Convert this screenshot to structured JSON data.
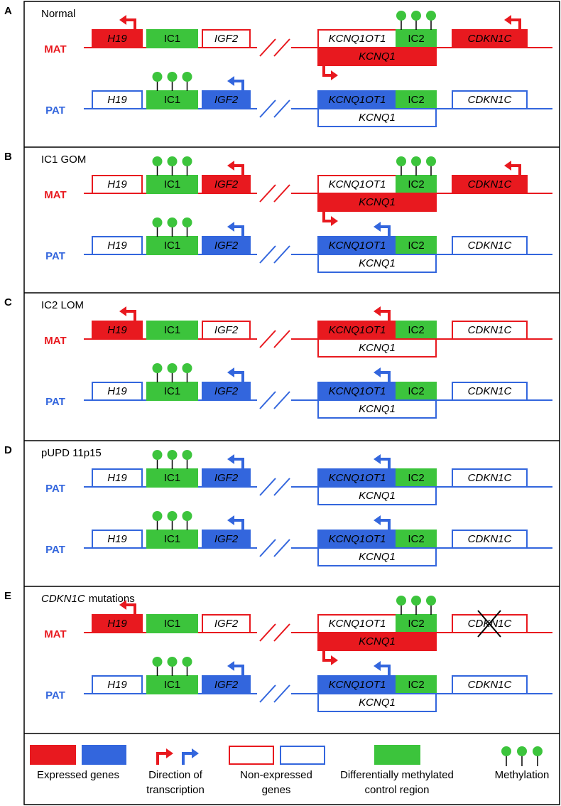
{
  "panels": [
    {
      "letter": "A",
      "title": "Normal",
      "strands": [
        {
          "label": "MAT",
          "genes": [
            "H19",
            "IC1",
            "IGF2",
            "KCNQ1OT1",
            "IC2",
            "KCNQ1",
            "CDKN1C"
          ]
        },
        {
          "label": "PAT",
          "genes": [
            "H19",
            "IC1",
            "IGF2",
            "KCNQ1OT1",
            "IC2",
            "KCNQ1",
            "CDKN1C"
          ]
        }
      ]
    },
    {
      "letter": "B",
      "title": "IC1 GOM",
      "strands": [
        {
          "label": "MAT",
          "genes": [
            "H19",
            "IC1",
            "IGF2",
            "KCNQ1OT1",
            "IC2",
            "KCNQ1",
            "CDKN1C"
          ]
        },
        {
          "label": "PAT",
          "genes": [
            "H19",
            "IC1",
            "IGF2",
            "KCNQ1OT1",
            "IC2",
            "KCNQ1",
            "CDKN1C"
          ]
        }
      ]
    },
    {
      "letter": "C",
      "title": "IC2 LOM",
      "strands": [
        {
          "label": "MAT",
          "genes": [
            "H19",
            "IC1",
            "IGF2",
            "KCNQ1OT1",
            "IC2",
            "KCNQ1",
            "CDKN1C"
          ]
        },
        {
          "label": "PAT",
          "genes": [
            "H19",
            "IC1",
            "IGF2",
            "KCNQ1OT1",
            "IC2",
            "KCNQ1",
            "CDKN1C"
          ]
        }
      ]
    },
    {
      "letter": "D",
      "title": "pUPD 11p15",
      "strands": [
        {
          "label": "PAT",
          "genes": [
            "H19",
            "IC1",
            "IGF2",
            "KCNQ1OT1",
            "IC2",
            "KCNQ1",
            "CDKN1C"
          ]
        },
        {
          "label": "PAT",
          "genes": [
            "H19",
            "IC1",
            "IGF2",
            "KCNQ1OT1",
            "IC2",
            "KCNQ1",
            "CDKN1C"
          ]
        }
      ]
    },
    {
      "letter": "E",
      "title_gene": "CDKN1C",
      "title": "mutations",
      "strands": [
        {
          "label": "MAT",
          "genes": [
            "H19",
            "IC1",
            "IGF2",
            "KCNQ1OT1",
            "IC2",
            "KCNQ1",
            "CDKN1C"
          ]
        },
        {
          "label": "PAT",
          "genes": [
            "H19",
            "IC1",
            "IGF2",
            "KCNQ1OT1",
            "IC2",
            "KCNQ1",
            "CDKN1C"
          ]
        }
      ]
    }
  ],
  "legend": [
    [
      "Expressed genes"
    ],
    [
      "Direction of",
      "transcription"
    ],
    [
      "Non-expressed",
      "genes"
    ],
    [
      "Differentially methylated",
      "control region"
    ],
    [
      "Methylation"
    ]
  ]
}
